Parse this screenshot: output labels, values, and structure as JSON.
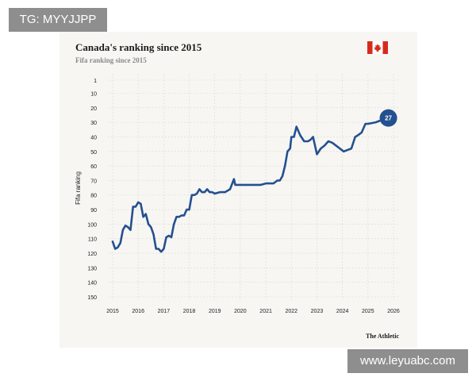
{
  "watermark_top": "TG: MYYJJPP",
  "watermark_bottom": "www.leyuabc.com",
  "source": "The Athletic",
  "flag_icon": "canada-flag-icon",
  "colors": {
    "line": "#24508f",
    "flag_red": "#d52b1e",
    "grid": "#d9d9d6",
    "background": "#f7f6f3"
  },
  "chart_data": {
    "type": "line",
    "title": "Canada's ranking since 2015",
    "subtitle": "Fifa ranking since 2015",
    "ylabel": "Fifa ranking",
    "xlabel": "",
    "y_inverted": true,
    "ylim": [
      1,
      150
    ],
    "yticks": [
      "1",
      "10",
      "20",
      "30",
      "40",
      "50",
      "60",
      "70",
      "80",
      "90",
      "100",
      "110",
      "120",
      "130",
      "140",
      "150"
    ],
    "xticks": [
      "2015",
      "2016",
      "2017",
      "2018",
      "2019",
      "2020",
      "2021",
      "2022",
      "2023",
      "2024",
      "2025",
      "2026"
    ],
    "grid": true,
    "end_label": "27",
    "series": [
      {
        "x": [
          2015.0,
          2015.1,
          2015.2,
          2015.3,
          2015.4,
          2015.5,
          2015.6,
          2015.7,
          2015.8,
          2015.9,
          2016.0,
          2016.1,
          2016.2,
          2016.3,
          2016.4,
          2016.5,
          2016.6,
          2016.7,
          2016.8,
          2016.9,
          2017.0,
          2017.1,
          2017.2,
          2017.3,
          2017.4,
          2017.5,
          2017.6,
          2017.7,
          2017.8,
          2017.9,
          2018.0,
          2018.1,
          2018.2,
          2018.3,
          2018.4,
          2018.5,
          2018.6,
          2018.7,
          2018.8,
          2018.9,
          2019.0,
          2019.2,
          2019.4,
          2019.6,
          2019.75,
          2019.8,
          2019.9,
          2020.2,
          2020.5,
          2020.8,
          2021.0,
          2021.2,
          2021.3,
          2021.45,
          2021.55,
          2021.65,
          2021.75,
          2021.85,
          2021.95,
          2022.0,
          2022.1,
          2022.2,
          2022.35,
          2022.5,
          2022.65,
          2022.75,
          2022.85,
          2023.0,
          2023.15,
          2023.3,
          2023.45,
          2023.6,
          2023.75,
          2023.9,
          2024.05,
          2024.2,
          2024.35,
          2024.5,
          2024.6,
          2024.75,
          2024.9,
          2025.0,
          2025.3,
          2025.6,
          2025.8
        ],
        "y": [
          112,
          117,
          116,
          113,
          104,
          101,
          102,
          104,
          88,
          88,
          85,
          86,
          95,
          93,
          100,
          102,
          107,
          117,
          117,
          119,
          117,
          109,
          108,
          109,
          100,
          95,
          95,
          94,
          94,
          90,
          90,
          80,
          80,
          79,
          76,
          78,
          78,
          76,
          78,
          78,
          79,
          78,
          78,
          76,
          69,
          73,
          73,
          73,
          73,
          73,
          72,
          72,
          72,
          70,
          70,
          67,
          60,
          50,
          48,
          40,
          40,
          33,
          39,
          43,
          43,
          42,
          40,
          52,
          48,
          46,
          43,
          44,
          46,
          48,
          50,
          49,
          48,
          40,
          39,
          37,
          31,
          31,
          30,
          28,
          27
        ]
      }
    ]
  }
}
